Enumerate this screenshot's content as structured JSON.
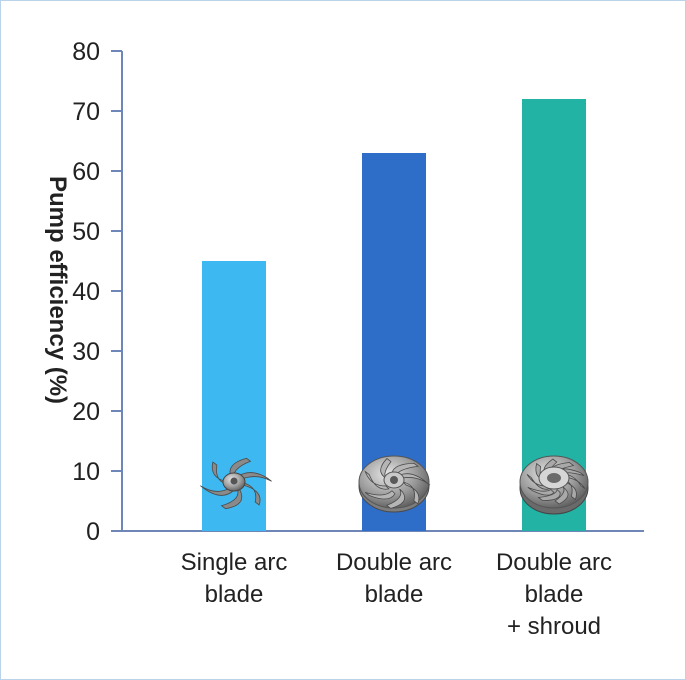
{
  "chart_data": {
    "type": "bar",
    "categories": [
      [
        "Single arc",
        "blade"
      ],
      [
        "Double arc",
        "blade"
      ],
      [
        "Double arc",
        "blade",
        "+ shroud"
      ]
    ],
    "values": [
      45,
      63,
      72
    ],
    "ylabel": "Pump efficiency (%)",
    "xlabel": "",
    "ylim": [
      0,
      80
    ],
    "yticks": [
      0,
      10,
      20,
      30,
      40,
      50,
      60,
      70,
      80
    ],
    "grid": false,
    "legend": "none",
    "colors": [
      "#3db8f0",
      "#2e6ec8",
      "#22b3a5"
    ],
    "axis_color": "#6f86b8",
    "bar_icons": [
      "impeller-single-arc-icon",
      "impeller-double-arc-icon",
      "impeller-shrouded-icon"
    ]
  }
}
